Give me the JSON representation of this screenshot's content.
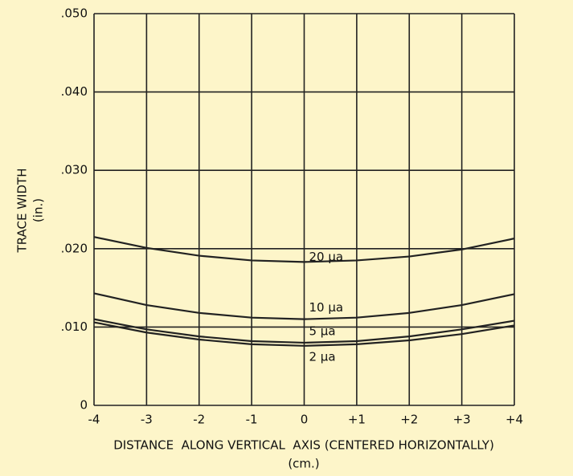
{
  "chart_data": {
    "type": "line",
    "ylabel": "TRACE WIDTH",
    "ylabel_unit": "(in.)",
    "xlabel": "DISTANCE  ALONG VERTICAL  AXIS (CENTERED HORIZONTALLY)",
    "xlabel_unit": "(cm.)",
    "x": [
      -4,
      -3,
      -2,
      -1,
      0,
      1,
      2,
      3,
      4
    ],
    "series": [
      {
        "name": "20 µa",
        "color": "#222222",
        "values": [
          0.0215,
          0.0201,
          0.0191,
          0.0185,
          0.0183,
          0.0185,
          0.019,
          0.0199,
          0.0213
        ]
      },
      {
        "name": "10 µa",
        "color": "#222222",
        "values": [
          0.0143,
          0.0128,
          0.0118,
          0.0112,
          0.011,
          0.0112,
          0.0118,
          0.0128,
          0.0142
        ]
      },
      {
        "name": "5 µa",
        "color": "#222222",
        "values": [
          0.011,
          0.0097,
          0.0088,
          0.0082,
          0.008,
          0.0082,
          0.0088,
          0.0097,
          0.0108
        ]
      },
      {
        "name": "2 µa",
        "color": "#222222",
        "values": [
          0.0106,
          0.0093,
          0.0084,
          0.0078,
          0.0076,
          0.0078,
          0.0083,
          0.0091,
          0.0102
        ]
      }
    ],
    "xlim": [
      -4,
      4
    ],
    "xticks": [
      -4,
      -3,
      -2,
      -1,
      0,
      {
        "value": 1,
        "label": "+1"
      },
      {
        "value": 2,
        "label": "+2"
      },
      {
        "value": 3,
        "label": "+3"
      },
      {
        "value": 4,
        "label": "+4"
      }
    ],
    "ylim": [
      0,
      0.05
    ],
    "yticks": [
      0,
      {
        "value": 0.01,
        "label": ".010"
      },
      {
        "value": 0.02,
        "label": ".020"
      },
      {
        "value": 0.03,
        "label": ".030"
      },
      {
        "value": 0.04,
        "label": ".040"
      },
      {
        "value": 0.05,
        "label": ".050"
      }
    ],
    "grid": true
  }
}
